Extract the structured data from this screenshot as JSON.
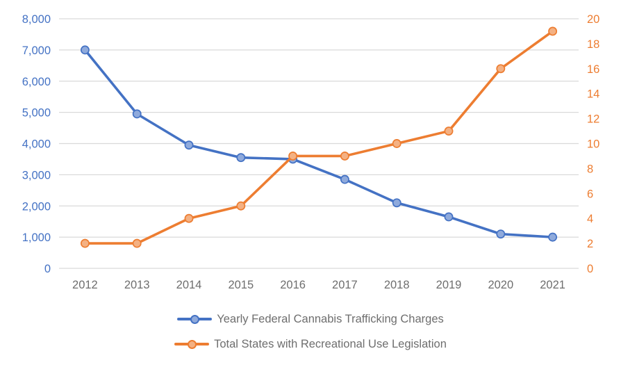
{
  "chart_data": {
    "type": "line",
    "categories": [
      "2012",
      "2013",
      "2014",
      "2015",
      "2016",
      "2017",
      "2018",
      "2019",
      "2020",
      "2021"
    ],
    "series": [
      {
        "name": "Yearly Federal Cannabis Trafficking Charges",
        "axis": "left",
        "color": "#4472C4",
        "marker_fill": "#8FAADC",
        "values": [
          7000,
          4950,
          3950,
          3550,
          3500,
          2850,
          2100,
          1650,
          1100,
          1000
        ]
      },
      {
        "name": "Total States with Recreational Use Legislation",
        "axis": "right",
        "color": "#ED7D31",
        "marker_fill": "#F4B183",
        "values": [
          2,
          2,
          4,
          5,
          9,
          9,
          10,
          11,
          16,
          19
        ]
      }
    ],
    "left_axis": {
      "min": 0,
      "max": 8000,
      "step": 1000,
      "tick_labels": [
        "0",
        "1,000",
        "2,000",
        "3,000",
        "4,000",
        "5,000",
        "6,000",
        "7,000",
        "8,000"
      ],
      "label_color": "#4472C4"
    },
    "right_axis": {
      "min": 0,
      "max": 20,
      "step": 2,
      "tick_labels": [
        "0",
        "2",
        "4",
        "6",
        "8",
        "10",
        "12",
        "14",
        "16",
        "18",
        "20"
      ],
      "label_color": "#ED7D31"
    },
    "x_axis": {
      "label_color": "#6E6E6E"
    },
    "grid_color": "#D9D9D9",
    "legend_text_color": "#6E6E6E",
    "legend_position": "bottom",
    "grid": true
  }
}
